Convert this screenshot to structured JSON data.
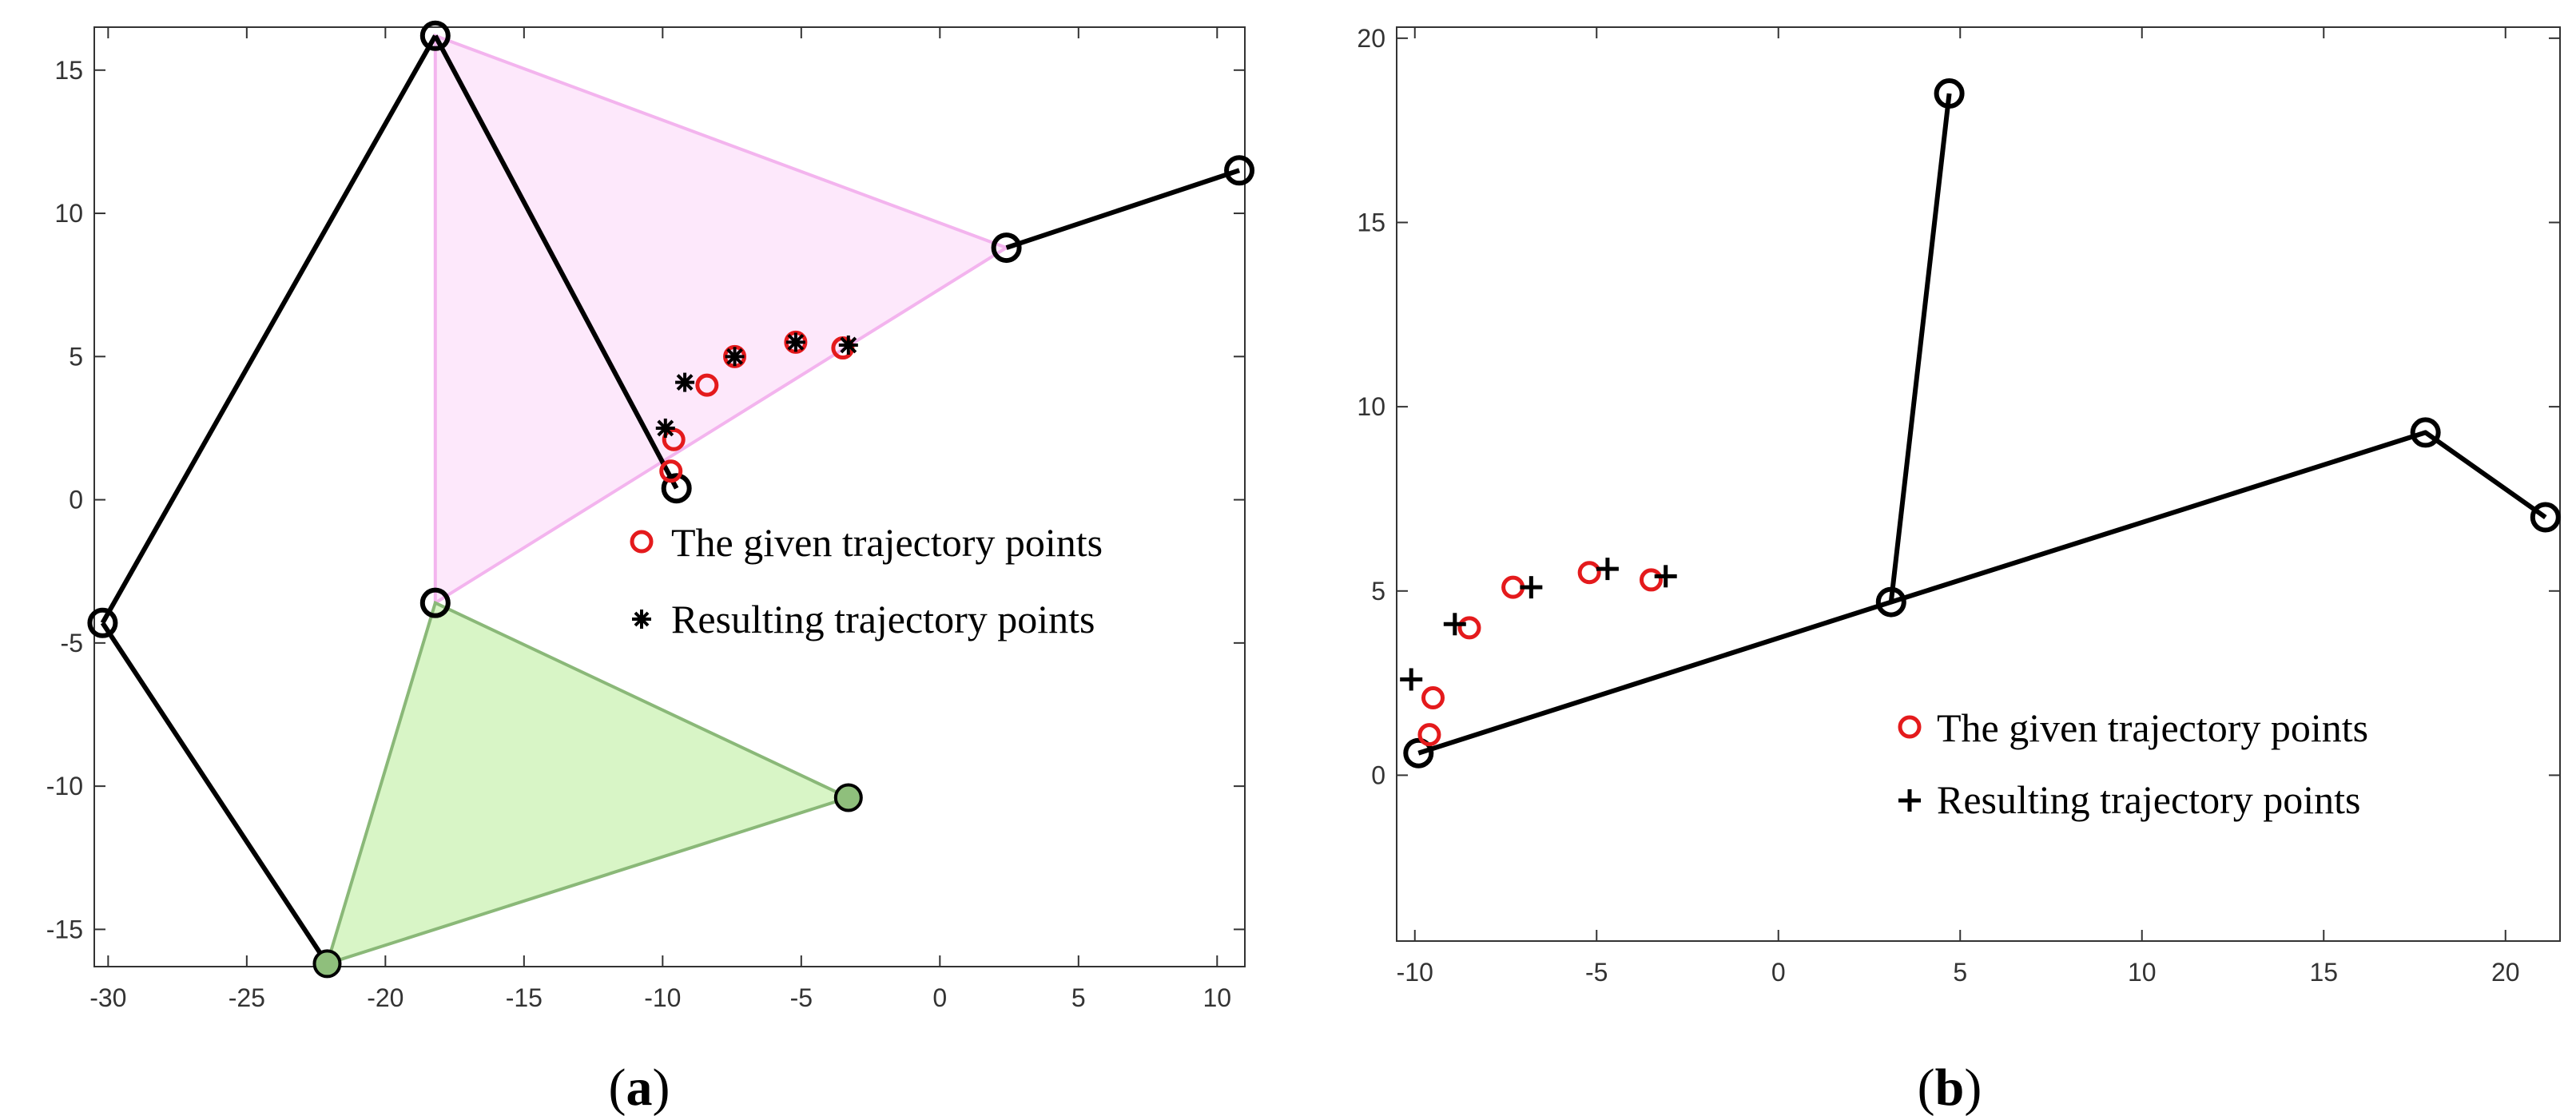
{
  "chart_data": [
    {
      "type": "line",
      "panel": "a",
      "caption": {
        "open": "(",
        "letter": "a",
        "close": ")"
      },
      "title": "",
      "xlabel": "",
      "ylabel": "",
      "xlim": [
        -30.5,
        11
      ],
      "ylim": [
        -16.3,
        16.5
      ],
      "xticks": [
        -30,
        -25,
        -20,
        -15,
        -10,
        -5,
        0,
        5,
        10
      ],
      "yticks": [
        -15,
        -10,
        -5,
        0,
        5,
        10,
        15
      ],
      "grid": false,
      "triangles": [
        {
          "name": "pink-triangle",
          "fill": "#fde8fb",
          "stroke": "#f3b4ee",
          "points": [
            [
              -18.2,
              16.2
            ],
            [
              2.4,
              8.8
            ],
            [
              -18.2,
              -3.6
            ]
          ]
        },
        {
          "name": "green-triangle",
          "fill": "#d8f5c6",
          "stroke": "#8ab878",
          "points": [
            [
              -18.2,
              -3.6
            ],
            [
              -3.3,
              -10.4
            ],
            [
              -22.1,
              -16.2
            ]
          ]
        }
      ],
      "links": [
        {
          "name": "link-left-upper",
          "points": [
            [
              -30.2,
              -4.3
            ],
            [
              -18.2,
              16.2
            ]
          ]
        },
        {
          "name": "link-left-lower",
          "points": [
            [
              -30.2,
              -4.3
            ],
            [
              -22.1,
              -16.2
            ]
          ]
        },
        {
          "name": "link-inner-arm",
          "points": [
            [
              -18.2,
              16.2
            ],
            [
              -9.5,
              0.4
            ]
          ]
        },
        {
          "name": "link-right-arm",
          "points": [
            [
              2.4,
              8.8
            ],
            [
              10.8,
              11.5
            ]
          ]
        }
      ],
      "joints": [
        [
          -18.2,
          16.2
        ],
        [
          -30.2,
          -4.3
        ],
        [
          2.4,
          8.8
        ],
        [
          10.8,
          11.5
        ],
        [
          -18.2,
          -3.6
        ],
        [
          -9.5,
          0.4
        ]
      ],
      "filled_joints": [
        [
          -22.1,
          -16.2
        ],
        [
          -3.3,
          -10.4
        ]
      ],
      "series": [
        {
          "name": "The given trajectory points",
          "marker": "circle",
          "color": "#e41a1c",
          "x": [
            -9.7,
            -9.6,
            -8.4,
            -7.4,
            -5.2,
            -3.5
          ],
          "y": [
            1.0,
            2.1,
            4.0,
            5.0,
            5.5,
            5.3
          ]
        },
        {
          "name": "Resulting trajectory points",
          "marker": "asterisk",
          "color": "#000000",
          "x": [
            -9.9,
            -9.2,
            -7.4,
            -5.2,
            -3.3
          ],
          "y": [
            2.5,
            4.1,
            5.0,
            5.5,
            5.4
          ]
        }
      ],
      "legend": [
        {
          "label": "The given trajectory points",
          "marker": "circle"
        },
        {
          "label": "Resulting trajectory points",
          "marker": "asterisk"
        }
      ]
    },
    {
      "type": "line",
      "panel": "b",
      "caption": {
        "open": "(",
        "letter": "b",
        "close": ")"
      },
      "title": "",
      "xlabel": "",
      "ylabel": "",
      "xlim": [
        -10.5,
        21.5
      ],
      "ylim": [
        -4.5,
        20.3
      ],
      "xticks": [
        -10,
        -5,
        0,
        5,
        10,
        15,
        20
      ],
      "yticks": [
        0,
        5,
        10,
        15,
        20
      ],
      "grid": false,
      "links": [
        {
          "name": "link-base",
          "points": [
            [
              -9.9,
              0.6
            ],
            [
              3.1,
              4.7
            ],
            [
              17.8,
              9.3
            ],
            [
              21.1,
              7.0
            ]
          ]
        },
        {
          "name": "link-vertical",
          "points": [
            [
              3.1,
              4.7
            ],
            [
              4.7,
              18.5
            ]
          ]
        }
      ],
      "joints": [
        [
          -9.9,
          0.6
        ],
        [
          3.1,
          4.7
        ],
        [
          4.7,
          18.5
        ],
        [
          17.8,
          9.3
        ],
        [
          21.1,
          7.0
        ]
      ],
      "series": [
        {
          "name": "The given trajectory points",
          "marker": "circle",
          "color": "#e41a1c",
          "x": [
            -9.6,
            -9.5,
            -8.5,
            -7.3,
            -5.2,
            -3.5
          ],
          "y": [
            1.1,
            2.1,
            4.0,
            5.1,
            5.5,
            5.3
          ]
        },
        {
          "name": "Resulting trajectory points",
          "marker": "plus",
          "color": "#000000",
          "x": [
            -10.1,
            -8.9,
            -6.8,
            -4.7,
            -3.1
          ],
          "y": [
            2.6,
            4.1,
            5.1,
            5.6,
            5.4
          ]
        }
      ],
      "legend": [
        {
          "label": "The given trajectory points",
          "marker": "circle"
        },
        {
          "label": "Resulting trajectory points",
          "marker": "plus"
        }
      ]
    }
  ]
}
